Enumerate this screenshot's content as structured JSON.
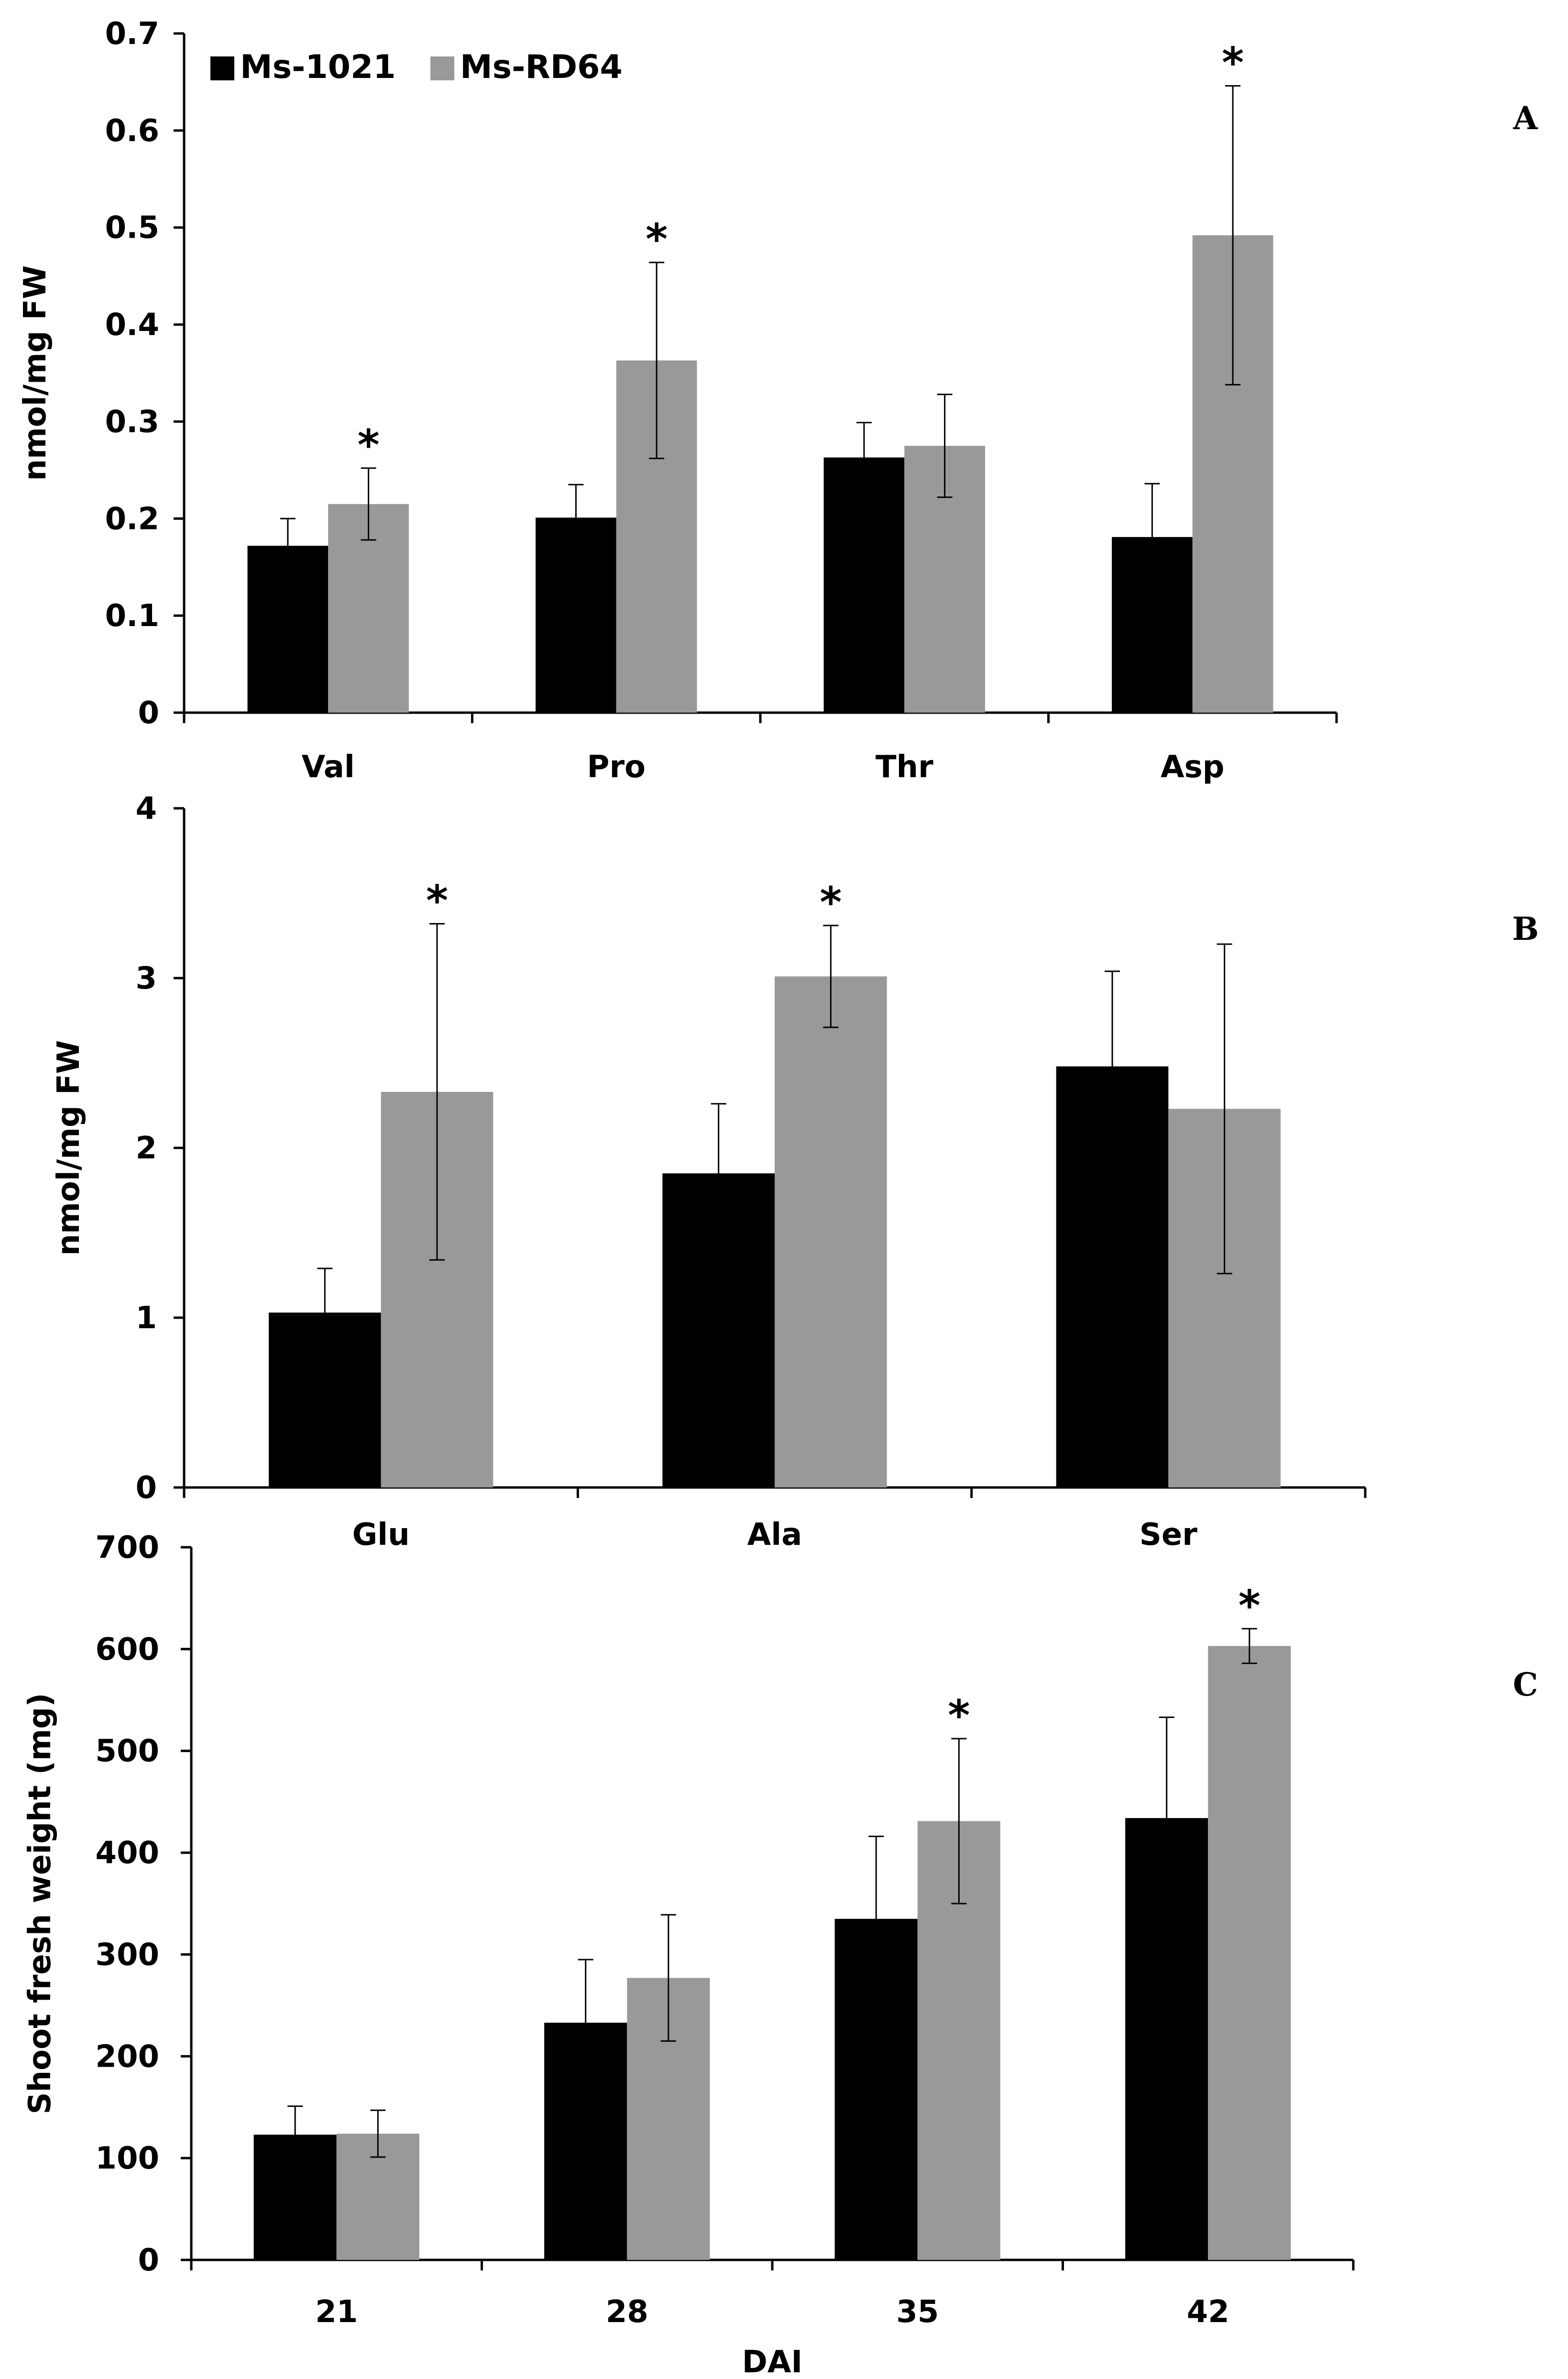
{
  "legend": [
    {
      "name": "Ms-1021",
      "color": "#000000"
    },
    {
      "name": "Ms-RD64",
      "color": "#999999"
    }
  ],
  "significance_marker": "*",
  "chart_data": [
    {
      "panel": "A",
      "type": "bar",
      "categories": [
        "Val",
        "Pro",
        "Thr",
        "Asp"
      ],
      "series": [
        {
          "name": "Ms-1021",
          "values": [
            0.172,
            0.201,
            0.263,
            0.181
          ],
          "errors": [
            0.028,
            0.034,
            0.036,
            0.055
          ]
        },
        {
          "name": "Ms-RD64",
          "values": [
            0.215,
            0.363,
            0.275,
            0.492
          ],
          "errors": [
            0.037,
            0.101,
            0.053,
            0.154
          ]
        }
      ],
      "significant": [
        false,
        false,
        false,
        false,
        true,
        true,
        false,
        true
      ],
      "ylabel": "nmol/mg FW",
      "xlabel": "",
      "ylim": [
        0,
        0.7
      ],
      "yticks": [
        "0",
        "0.1",
        "0.2",
        "0.3",
        "0.4",
        "0.5",
        "0.6",
        "0.7"
      ],
      "ytick_values": [
        0,
        0.1,
        0.2,
        0.3,
        0.4,
        0.5,
        0.6,
        0.7
      ]
    },
    {
      "panel": "B",
      "type": "bar",
      "categories": [
        "Glu",
        "Ala",
        "Ser"
      ],
      "series": [
        {
          "name": "Ms-1021",
          "values": [
            1.03,
            1.85,
            2.48
          ],
          "errors": [
            0.26,
            0.41,
            0.56
          ]
        },
        {
          "name": "Ms-RD64",
          "values": [
            2.33,
            3.01,
            2.23
          ],
          "errors": [
            0.99,
            0.3,
            0.97
          ]
        }
      ],
      "significant": [
        false,
        false,
        false,
        true,
        true,
        false
      ],
      "ylabel": "nmol/mg FW",
      "xlabel": "",
      "ylim": [
        0,
        4
      ],
      "yticks": [
        "0",
        "1",
        "2",
        "3",
        "4"
      ],
      "ytick_values": [
        0,
        1,
        2,
        3,
        4
      ]
    },
    {
      "panel": "C",
      "type": "bar",
      "categories": [
        "21",
        "28",
        "35",
        "42"
      ],
      "series": [
        {
          "name": "Ms-1021",
          "values": [
            123,
            233,
            335,
            434
          ],
          "errors": [
            28,
            62,
            81,
            99
          ]
        },
        {
          "name": "Ms-RD64",
          "values": [
            124,
            277,
            431,
            603
          ],
          "errors": [
            23,
            62,
            81,
            17
          ]
        }
      ],
      "significant": [
        false,
        false,
        false,
        false,
        false,
        false,
        true,
        true
      ],
      "ylabel": "Shoot fresh weight (mg)",
      "xlabel": "DAI",
      "ylim": [
        0,
        700
      ],
      "yticks": [
        "0",
        "100",
        "200",
        "300",
        "400",
        "500",
        "600",
        "700"
      ],
      "ytick_values": [
        0,
        100,
        200,
        300,
        400,
        500,
        600,
        700
      ]
    }
  ]
}
